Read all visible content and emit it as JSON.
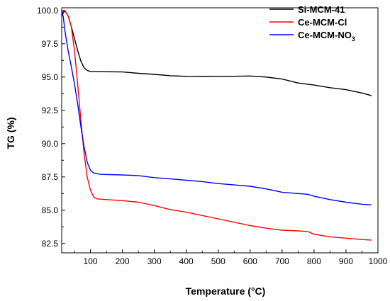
{
  "chart_data": {
    "type": "line",
    "xlabel": "Temperature (°C)",
    "ylabel": "TG (%)",
    "xlim": [
      10,
      1000
    ],
    "ylim": [
      81.8,
      100.2
    ],
    "x_ticks": [
      100,
      200,
      300,
      400,
      500,
      600,
      700,
      800,
      900,
      1000
    ],
    "x_tick_labels": [
      "100",
      "200",
      "300",
      "400",
      "500",
      "600",
      "700",
      "800",
      "900",
      "1000"
    ],
    "y_ticks": [
      82.5,
      85,
      87.5,
      90,
      92.5,
      95,
      97.5,
      100
    ],
    "y_tick_labels": [
      "82.5",
      "85.0",
      "87.5",
      "90.0",
      "92.5",
      "95.0",
      "97.5",
      "100.0"
    ],
    "grid": false,
    "legend_position": "top-right",
    "series": [
      {
        "name": "Si-MCM-41",
        "legend_main": "Si-MCM-41",
        "legend_sub": "",
        "color": "#000000",
        "points": [
          [
            10,
            99.6
          ],
          [
            20,
            100.0
          ],
          [
            30,
            99.6
          ],
          [
            40,
            98.8
          ],
          [
            50,
            97.9
          ],
          [
            60,
            97.0
          ],
          [
            70,
            96.2
          ],
          [
            80,
            95.7
          ],
          [
            90,
            95.5
          ],
          [
            100,
            95.42
          ],
          [
            150,
            95.4
          ],
          [
            200,
            95.38
          ],
          [
            250,
            95.28
          ],
          [
            300,
            95.2
          ],
          [
            350,
            95.1
          ],
          [
            400,
            95.05
          ],
          [
            450,
            95.04
          ],
          [
            500,
            95.05
          ],
          [
            550,
            95.06
          ],
          [
            600,
            95.08
          ],
          [
            650,
            95.0
          ],
          [
            700,
            94.85
          ],
          [
            750,
            94.55
          ],
          [
            800,
            94.4
          ],
          [
            850,
            94.2
          ],
          [
            900,
            94.05
          ],
          [
            950,
            93.8
          ],
          [
            980,
            93.6
          ]
        ]
      },
      {
        "name": "Ce-MCM-Cl",
        "legend_main": "Ce-MCM-Cl",
        "legend_sub": "",
        "color": "#ff0000",
        "points": [
          [
            10,
            99.8
          ],
          [
            18,
            100.0
          ],
          [
            25,
            99.8
          ],
          [
            32,
            99.5
          ],
          [
            40,
            98.8
          ],
          [
            50,
            97.0
          ],
          [
            60,
            94.5
          ],
          [
            70,
            91.8
          ],
          [
            80,
            89.3
          ],
          [
            90,
            87.5
          ],
          [
            100,
            86.5
          ],
          [
            110,
            86.0
          ],
          [
            120,
            85.85
          ],
          [
            150,
            85.8
          ],
          [
            200,
            85.72
          ],
          [
            250,
            85.6
          ],
          [
            300,
            85.35
          ],
          [
            350,
            85.05
          ],
          [
            400,
            84.85
          ],
          [
            450,
            84.6
          ],
          [
            500,
            84.35
          ],
          [
            550,
            84.1
          ],
          [
            600,
            83.85
          ],
          [
            650,
            83.65
          ],
          [
            700,
            83.5
          ],
          [
            750,
            83.45
          ],
          [
            780,
            83.4
          ],
          [
            800,
            83.2
          ],
          [
            850,
            83.0
          ],
          [
            900,
            82.9
          ],
          [
            950,
            82.8
          ],
          [
            980,
            82.75
          ]
        ]
      },
      {
        "name": "Ce-MCM-NO3",
        "legend_main": "Ce-MCM-NO",
        "legend_sub": "3",
        "color": "#0000ff",
        "points": [
          [
            10,
            100.0
          ],
          [
            15,
            99.5
          ],
          [
            20,
            98.5
          ],
          [
            30,
            97.0
          ],
          [
            40,
            95.8
          ],
          [
            50,
            94.5
          ],
          [
            60,
            93.0
          ],
          [
            70,
            91.3
          ],
          [
            80,
            89.8
          ],
          [
            90,
            88.6
          ],
          [
            100,
            88.0
          ],
          [
            110,
            87.8
          ],
          [
            130,
            87.7
          ],
          [
            150,
            87.68
          ],
          [
            200,
            87.65
          ],
          [
            250,
            87.6
          ],
          [
            300,
            87.45
          ],
          [
            350,
            87.35
          ],
          [
            400,
            87.25
          ],
          [
            450,
            87.15
          ],
          [
            500,
            87.0
          ],
          [
            550,
            86.9
          ],
          [
            600,
            86.8
          ],
          [
            650,
            86.6
          ],
          [
            700,
            86.35
          ],
          [
            750,
            86.25
          ],
          [
            780,
            86.2
          ],
          [
            800,
            86.05
          ],
          [
            850,
            85.8
          ],
          [
            900,
            85.6
          ],
          [
            950,
            85.45
          ],
          [
            980,
            85.4
          ]
        ]
      }
    ]
  }
}
